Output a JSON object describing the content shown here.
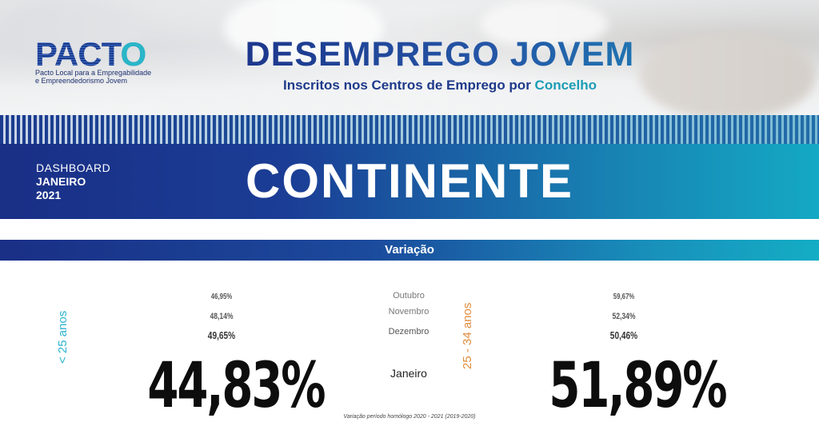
{
  "header": {
    "logo": {
      "word_part1": "PAC",
      "word_part2": "T",
      "word_part3": "O",
      "subtitle_line1": "Pacto Local para a Empregabilidade",
      "subtitle_line2": "e Empreendedorismo Jovem"
    },
    "title": "DESEMPREGO JOVEM",
    "subtitle_main": "Inscritos nos Centros de Emprego por ",
    "subtitle_accent": "Concelho"
  },
  "banner": {
    "dashboard_label": "DASHBOARD",
    "month": "JANEIRO",
    "year": "2021",
    "region": "CONTINENTE"
  },
  "variation": {
    "bar_label": "Variação",
    "months": [
      "Outubro",
      "Novembro",
      "Dezembro",
      "Janeiro"
    ],
    "left": {
      "age_label": "< 25 anos",
      "history": [
        "46,95%",
        "48,14%",
        "49,65%"
      ],
      "current": "44,83%"
    },
    "right": {
      "age_label": "25 - 34 anos",
      "history": [
        "59,67%",
        "52,34%",
        "50,46%"
      ],
      "current": "51,89%"
    },
    "footnote": "Variação período homólogo 2020 - 2021 (2019-2020)"
  },
  "colors": {
    "navy": "#1a2f86",
    "teal": "#14a9c4",
    "age_left": "#2cb3cf",
    "age_right": "#e28c3c"
  }
}
